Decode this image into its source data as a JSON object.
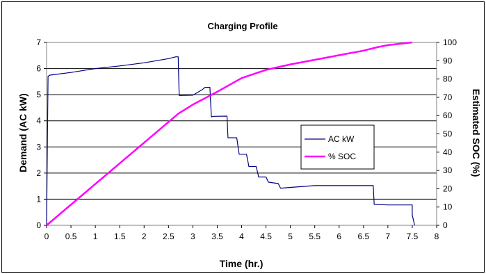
{
  "chart_data": {
    "type": "line",
    "title": "Charging Profile",
    "xlabel": "Time (hr.)",
    "ylabel": "Demand (AC kW)",
    "y2label": "Estimated SOC (%)",
    "xlim": [
      0,
      8
    ],
    "ylim": [
      0,
      7
    ],
    "y2lim": [
      0,
      100
    ],
    "x_ticks": [
      "0",
      "0.5",
      "1",
      "1.5",
      "2",
      "2.5",
      "3",
      "3.5",
      "4",
      "4.5",
      "5",
      "5.5",
      "6",
      "6.5",
      "7",
      "7.5",
      "8"
    ],
    "y_ticks": [
      "0",
      "1",
      "2",
      "3",
      "4",
      "5",
      "6",
      "7"
    ],
    "y2_ticks": [
      "0",
      "10",
      "20",
      "30",
      "40",
      "50",
      "60",
      "70",
      "80",
      "90",
      "100"
    ],
    "grid": "horizontal",
    "legend_position": "right",
    "series": [
      {
        "name": "AC kW",
        "axis": "left",
        "color": "#000080",
        "x": [
          0,
          0.03,
          0.07,
          0.5,
          1.0,
          1.5,
          2.0,
          2.5,
          2.65,
          2.7,
          2.72,
          3.0,
          3.2,
          3.25,
          3.35,
          3.38,
          3.42,
          3.7,
          3.72,
          3.9,
          3.95,
          4.1,
          4.15,
          4.3,
          4.35,
          4.5,
          4.55,
          4.75,
          4.8,
          5.0,
          5.5,
          6.0,
          6.5,
          6.7,
          6.72,
          7.0,
          7.5,
          7.5,
          7.55
        ],
        "y": [
          0,
          5.7,
          5.75,
          5.85,
          6.0,
          6.1,
          6.22,
          6.38,
          6.45,
          6.45,
          4.97,
          4.98,
          5.2,
          5.28,
          5.28,
          4.15,
          4.17,
          4.18,
          3.35,
          3.35,
          2.72,
          2.72,
          2.25,
          2.25,
          1.85,
          1.85,
          1.65,
          1.6,
          1.42,
          1.45,
          1.52,
          1.52,
          1.52,
          1.52,
          0.8,
          0.78,
          0.78,
          0.4,
          0
        ]
      },
      {
        "name": "% SOC",
        "axis": "right",
        "color": "#ff00ff",
        "x": [
          0,
          2.7,
          3.0,
          3.5,
          4.0,
          4.5,
          5.0,
          5.5,
          6.0,
          6.5,
          6.8,
          7.0,
          7.5
        ],
        "y": [
          0,
          61,
          66,
          73,
          80.5,
          85,
          88,
          90.5,
          93,
          95.5,
          97.5,
          98.5,
          100
        ]
      }
    ]
  }
}
